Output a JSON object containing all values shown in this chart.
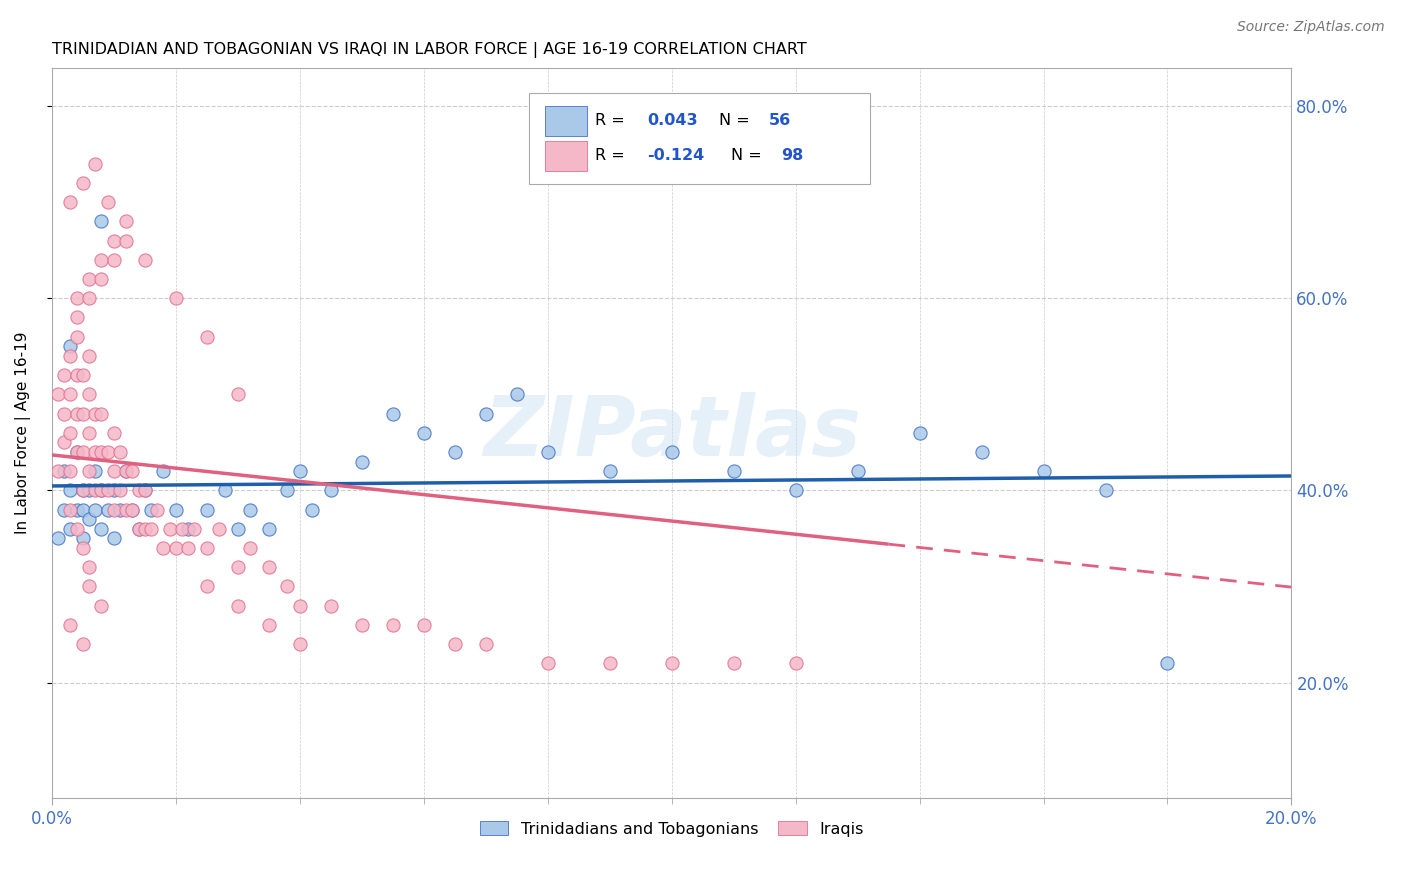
{
  "title": "TRINIDADIAN AND TOBAGONIAN VS IRAQI IN LABOR FORCE | AGE 16-19 CORRELATION CHART",
  "source": "Source: ZipAtlas.com",
  "ylabel": "In Labor Force | Age 16-19",
  "xlim": [
    0.0,
    0.2
  ],
  "ylim": [
    0.08,
    0.84
  ],
  "xtick_labels_show": [
    "0.0%",
    "20.0%"
  ],
  "xtick_labels_pos": [
    0.0,
    0.2
  ],
  "ytick_vals": [
    0.2,
    0.4,
    0.6,
    0.8
  ],
  "ytick_labels": [
    "20.0%",
    "40.0%",
    "60.0%",
    "80.0%"
  ],
  "blue_color": "#aac9e8",
  "pink_color": "#f5b8c8",
  "blue_edge_color": "#4472c4",
  "pink_edge_color": "#e07090",
  "blue_line_color": "#1f5faa",
  "pink_line_color": "#e06080",
  "watermark": "ZIPatlas",
  "blue_R": 0.043,
  "pink_R": -0.124,
  "blue_x": [
    0.001,
    0.002,
    0.002,
    0.003,
    0.003,
    0.004,
    0.004,
    0.005,
    0.005,
    0.005,
    0.006,
    0.006,
    0.007,
    0.007,
    0.008,
    0.008,
    0.009,
    0.01,
    0.01,
    0.011,
    0.012,
    0.013,
    0.014,
    0.015,
    0.016,
    0.018,
    0.02,
    0.022,
    0.025,
    0.028,
    0.03,
    0.032,
    0.035,
    0.038,
    0.04,
    0.042,
    0.045,
    0.05,
    0.055,
    0.06,
    0.065,
    0.07,
    0.075,
    0.08,
    0.09,
    0.1,
    0.11,
    0.12,
    0.13,
    0.14,
    0.15,
    0.16,
    0.17,
    0.18,
    0.003,
    0.008
  ],
  "blue_y": [
    0.35,
    0.38,
    0.42,
    0.4,
    0.36,
    0.44,
    0.38,
    0.35,
    0.38,
    0.4,
    0.37,
    0.4,
    0.42,
    0.38,
    0.36,
    0.4,
    0.38,
    0.35,
    0.4,
    0.38,
    0.42,
    0.38,
    0.36,
    0.4,
    0.38,
    0.42,
    0.38,
    0.36,
    0.38,
    0.4,
    0.36,
    0.38,
    0.36,
    0.4,
    0.42,
    0.38,
    0.4,
    0.43,
    0.48,
    0.46,
    0.44,
    0.48,
    0.5,
    0.44,
    0.42,
    0.44,
    0.42,
    0.4,
    0.42,
    0.46,
    0.44,
    0.42,
    0.4,
    0.22,
    0.55,
    0.68
  ],
  "pink_x": [
    0.001,
    0.001,
    0.002,
    0.002,
    0.002,
    0.003,
    0.003,
    0.003,
    0.003,
    0.004,
    0.004,
    0.004,
    0.004,
    0.005,
    0.005,
    0.005,
    0.005,
    0.006,
    0.006,
    0.006,
    0.006,
    0.007,
    0.007,
    0.007,
    0.008,
    0.008,
    0.008,
    0.009,
    0.009,
    0.01,
    0.01,
    0.01,
    0.011,
    0.011,
    0.012,
    0.012,
    0.013,
    0.013,
    0.014,
    0.014,
    0.015,
    0.015,
    0.016,
    0.017,
    0.018,
    0.019,
    0.02,
    0.021,
    0.022,
    0.023,
    0.025,
    0.027,
    0.03,
    0.032,
    0.035,
    0.038,
    0.04,
    0.045,
    0.05,
    0.055,
    0.06,
    0.065,
    0.07,
    0.08,
    0.09,
    0.1,
    0.11,
    0.12,
    0.004,
    0.006,
    0.008,
    0.01,
    0.012,
    0.004,
    0.006,
    0.008,
    0.01,
    0.012,
    0.003,
    0.005,
    0.007,
    0.009,
    0.015,
    0.02,
    0.025,
    0.03,
    0.006,
    0.008,
    0.003,
    0.005,
    0.025,
    0.03,
    0.035,
    0.04,
    0.003,
    0.004,
    0.005,
    0.006
  ],
  "pink_y": [
    0.42,
    0.5,
    0.45,
    0.48,
    0.52,
    0.42,
    0.46,
    0.5,
    0.54,
    0.44,
    0.48,
    0.52,
    0.56,
    0.4,
    0.44,
    0.48,
    0.52,
    0.42,
    0.46,
    0.5,
    0.54,
    0.4,
    0.44,
    0.48,
    0.4,
    0.44,
    0.48,
    0.4,
    0.44,
    0.38,
    0.42,
    0.46,
    0.4,
    0.44,
    0.38,
    0.42,
    0.38,
    0.42,
    0.36,
    0.4,
    0.36,
    0.4,
    0.36,
    0.38,
    0.34,
    0.36,
    0.34,
    0.36,
    0.34,
    0.36,
    0.34,
    0.36,
    0.32,
    0.34,
    0.32,
    0.3,
    0.28,
    0.28,
    0.26,
    0.26,
    0.26,
    0.24,
    0.24,
    0.22,
    0.22,
    0.22,
    0.22,
    0.22,
    0.6,
    0.62,
    0.64,
    0.66,
    0.68,
    0.58,
    0.6,
    0.62,
    0.64,
    0.66,
    0.7,
    0.72,
    0.74,
    0.7,
    0.64,
    0.6,
    0.56,
    0.5,
    0.3,
    0.28,
    0.26,
    0.24,
    0.3,
    0.28,
    0.26,
    0.24,
    0.38,
    0.36,
    0.34,
    0.32
  ]
}
